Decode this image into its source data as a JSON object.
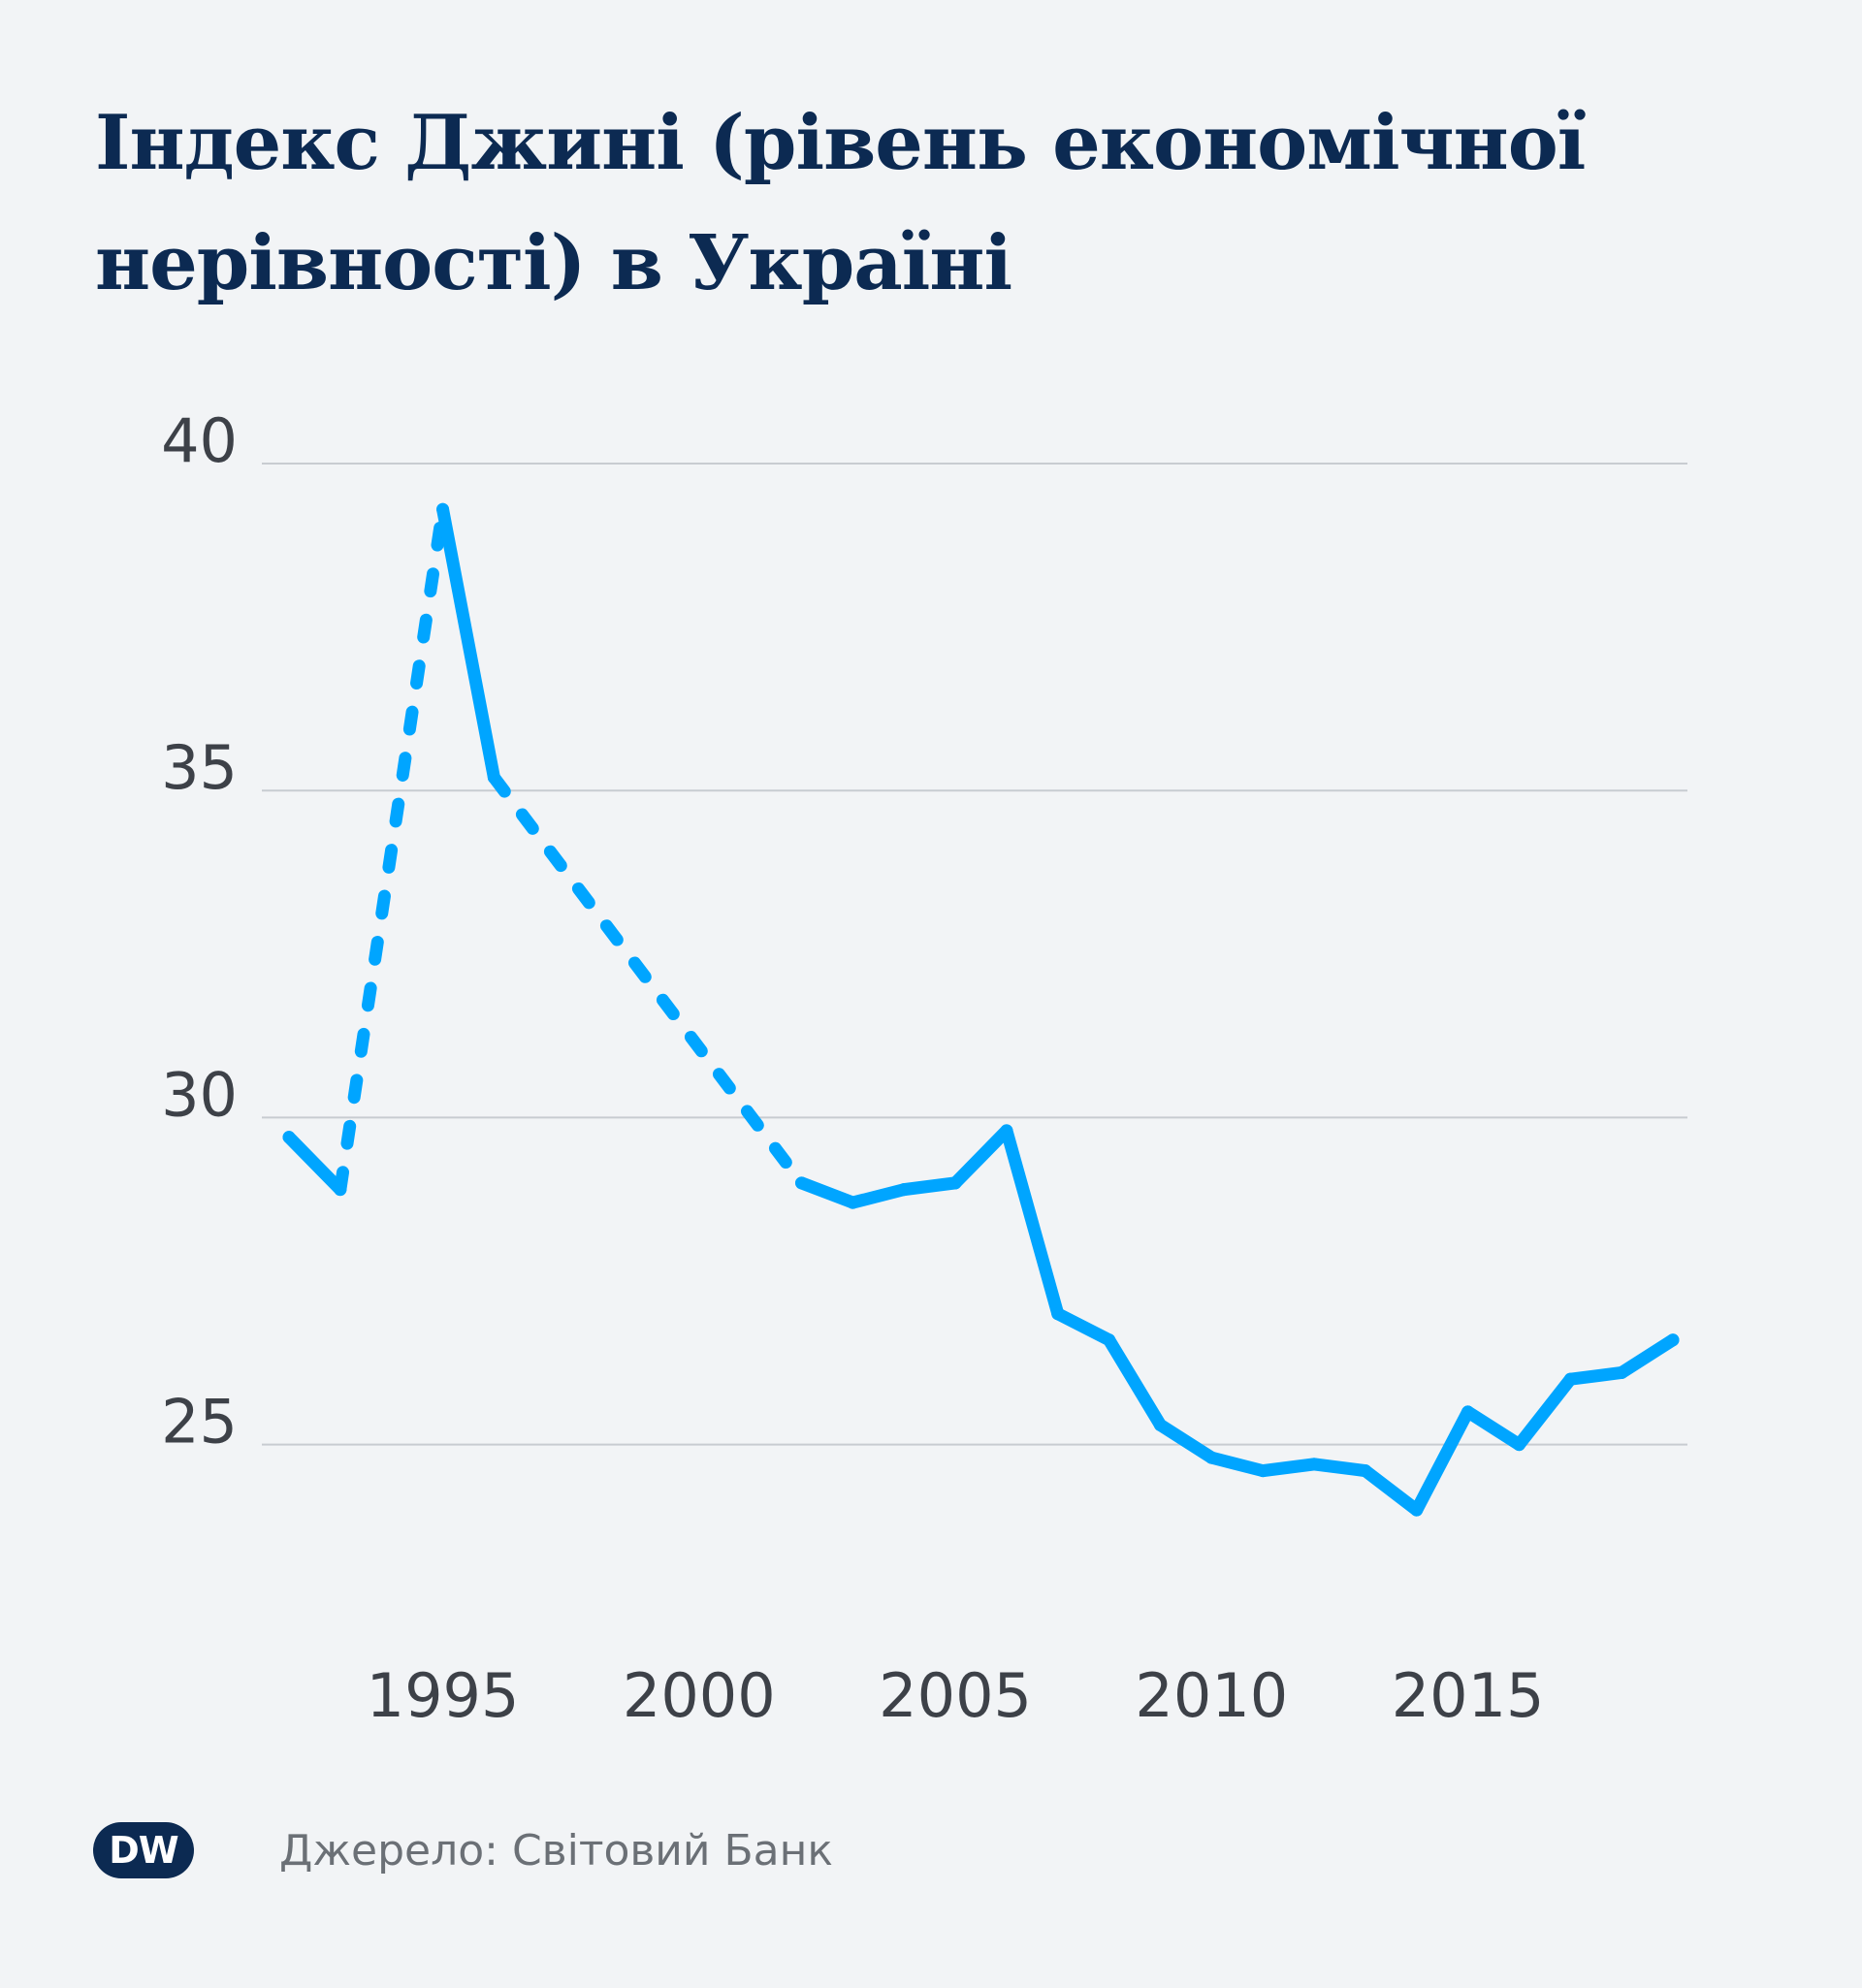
{
  "title": "Індекс Джині (рівень економічної нерівності) в Україні",
  "source": "Джерело: Світовий Банк",
  "logo_text": "DW",
  "colors": {
    "background": "#f2f4f6",
    "line": "#00a5ff",
    "grid": "#c8ccd1",
    "title": "#0c2a52",
    "tick": "#3d4148",
    "source": "#6b7076"
  },
  "chart_data": {
    "type": "line",
    "title": "Індекс Джині (рівень економічної нерівності) в Україні",
    "xlabel": "",
    "ylabel": "",
    "xlim": [
      1992,
      2019
    ],
    "ylim": [
      22.4,
      40
    ],
    "x_ticks": [
      1995,
      2000,
      2005,
      2010,
      2015
    ],
    "y_ticks": [
      25,
      30,
      35,
      40
    ],
    "grid": "horizontal",
    "legend": "none",
    "gaps_shown_dotted": true,
    "series": [
      {
        "points": [
          {
            "x": 1992,
            "y": 29.7
          },
          {
            "x": 1993,
            "y": 28.9
          },
          {
            "x": 1995,
            "y": 39.3
          },
          {
            "x": 1996,
            "y": 35.2
          },
          {
            "x": 2002,
            "y": 29.0
          },
          {
            "x": 2003,
            "y": 28.7
          },
          {
            "x": 2004,
            "y": 28.9
          },
          {
            "x": 2005,
            "y": 29.0
          },
          {
            "x": 2006,
            "y": 29.8
          },
          {
            "x": 2007,
            "y": 27.0
          },
          {
            "x": 2008,
            "y": 26.6
          },
          {
            "x": 2009,
            "y": 25.3
          },
          {
            "x": 2010,
            "y": 24.8
          },
          {
            "x": 2011,
            "y": 24.6
          },
          {
            "x": 2012,
            "y": 24.7
          },
          {
            "x": 2013,
            "y": 24.6
          },
          {
            "x": 2014,
            "y": 24.0
          },
          {
            "x": 2015,
            "y": 25.5
          },
          {
            "x": 2016,
            "y": 25.0
          },
          {
            "x": 2017,
            "y": 26.0
          },
          {
            "x": 2018,
            "y": 26.1
          },
          {
            "x": 2019,
            "y": 26.6
          }
        ]
      }
    ]
  }
}
